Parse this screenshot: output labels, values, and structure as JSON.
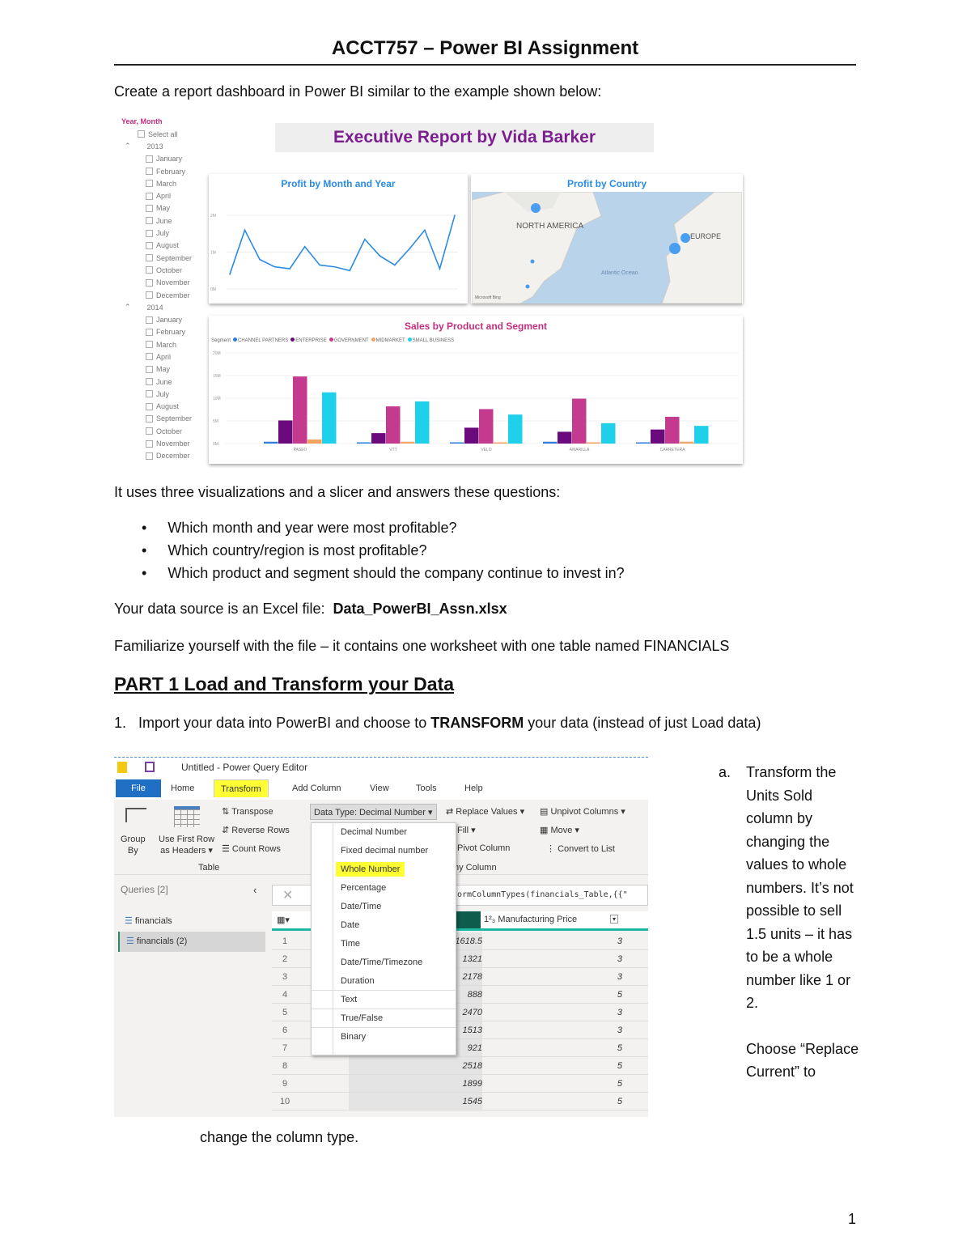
{
  "doc": {
    "title": "ACCT757 – Power BI Assignment",
    "intro": "Create a report dashboard in Power BI similar to the example shown below:",
    "uses": "It uses three visualizations and a slicer and answers these questions:",
    "questions": [
      "Which month and year were most profitable?",
      "Which country/region is most profitable?",
      "Which product and segment should the company continue to invest in?"
    ],
    "source_prefix": "Your data source is an Excel file:",
    "source_file": "Data_PowerBI_Assn.xlsx",
    "familiarize": "Familiarize yourself with the file – it contains one worksheet with one table named FINANCIALS",
    "part1": "PART 1 Load and Transform your Data",
    "step1_num": "1.",
    "step1_a": "Import  your data into PowerBI and choose to ",
    "step1_b": "TRANSFORM",
    "step1_c": " your data (instead of just Load data)",
    "note_letter": "a.",
    "note_text": "Transform the Units Sold column by changing the values to whole numbers.  It’s not possible to sell 1.5 units – it has to be a whole number like 1 or 2.",
    "note_choose": "Choose “Replace Current” to",
    "note_cont": "change the column type.",
    "page_number": "1"
  },
  "dashboard": {
    "title": "Executive Report by Vida Barker",
    "slicer": {
      "header": "Year, Month",
      "select_all": "Select all",
      "years": [
        {
          "year": "2013",
          "months": [
            "January",
            "February",
            "March",
            "April",
            "May",
            "June",
            "July",
            "August",
            "September",
            "October",
            "November",
            "December"
          ]
        },
        {
          "year": "2014",
          "months": [
            "January",
            "February",
            "March",
            "April",
            "May",
            "June",
            "July",
            "August",
            "September",
            "October",
            "November",
            "December"
          ]
        }
      ]
    },
    "colors": {
      "title": "#7b1f8f",
      "blue_title": "#2b8be3",
      "pink_title": "#c2307d"
    }
  },
  "chart_data": [
    {
      "type": "line",
      "title": "Profit by Month and Year",
      "yticks": [
        "0M",
        "1M",
        "2M"
      ],
      "ylim": [
        0,
        2.2
      ],
      "values": [
        0.4,
        1.6,
        0.8,
        0.6,
        0.55,
        1.15,
        0.65,
        0.6,
        0.5,
        1.35,
        0.9,
        0.65,
        1.1,
        1.6,
        0.55,
        2.0
      ],
      "color": "#2b8be3"
    },
    {
      "type": "map",
      "title": "Profit by Country",
      "labels": [
        "NORTH AMERICA",
        "EUROPE",
        "Atlantic Ocean"
      ],
      "credit": "Microsoft Bing"
    },
    {
      "type": "bar",
      "title": "Sales by Product and Segment",
      "legend_title": "Segment",
      "yticks": [
        "0M",
        "5M",
        "10M",
        "15M",
        "20M"
      ],
      "ylim": [
        0,
        20
      ],
      "categories": [
        "PASEO",
        "VTT",
        "VELO",
        "AMARILLA",
        "CARRETERA"
      ],
      "series": [
        {
          "name": "CHANNEL PARTNERS",
          "color": "#2b7de0",
          "values": [
            0.4,
            0.2,
            0.2,
            0.4,
            0.2
          ]
        },
        {
          "name": "ENTERPRISE",
          "color": "#6b0a7c",
          "values": [
            5.1,
            2.3,
            3.5,
            2.6,
            3.1
          ]
        },
        {
          "name": "GOVERNMENT",
          "color": "#c43a8f",
          "values": [
            14.8,
            8.2,
            7.6,
            9.9,
            5.9
          ]
        },
        {
          "name": "MIDMARKET",
          "color": "#f4a261",
          "values": [
            0.9,
            0.4,
            0.2,
            0.2,
            0.4
          ]
        },
        {
          "name": "SMALL BUSINESS",
          "color": "#1fd0ea",
          "values": [
            11.3,
            9.3,
            6.4,
            4.5,
            3.9
          ]
        }
      ]
    }
  ],
  "pq": {
    "window_title": "Untitled - Power Query Editor",
    "tabs": [
      "File",
      "Home",
      "Transform",
      "Add Column",
      "View",
      "Tools",
      "Help"
    ],
    "group_by": "Group\nBy",
    "use_first_row": "Use First Row\nas Headers ▾",
    "transpose": "Transpose",
    "reverse_rows": "Reverse Rows",
    "count_rows": "Count Rows",
    "table_group": "Table",
    "data_type": "Data Type: Decimal Number ▾",
    "replace_values": "Replace Values ▾",
    "unpivot": "Unpivot Columns ▾",
    "fill": "Fill ▾",
    "move": "Move ▾",
    "pivot": "Pivot Column",
    "convert_list": "Convert to List",
    "any_column": "ny Column",
    "menu": [
      "Decimal Number",
      "Fixed decimal number",
      "Whole Number",
      "Percentage",
      "Date/Time",
      "Date",
      "Time",
      "Date/Time/Timezone",
      "Duration",
      "Text",
      "True/False",
      "Binary"
    ],
    "queries_label": "Queries [2]",
    "queries": [
      "financials",
      "financials (2)"
    ],
    "formula": "ormColumnTypes(financials_Table,{{\"",
    "col_header": "Manufacturing Price",
    "rows": [
      {
        "n": "1",
        "units": "1618.5",
        "price": "3"
      },
      {
        "n": "2",
        "units": "1321",
        "price": "3"
      },
      {
        "n": "3",
        "units": "2178",
        "price": "3"
      },
      {
        "n": "4",
        "units": "888",
        "price": "5"
      },
      {
        "n": "5",
        "units": "2470",
        "price": "3"
      },
      {
        "n": "6",
        "units": "1513",
        "price": "3"
      },
      {
        "n": "7",
        "units": "921",
        "price": "5"
      },
      {
        "n": "8",
        "units": "2518",
        "price": "5"
      },
      {
        "n": "9",
        "units": "1899",
        "price": "5"
      },
      {
        "n": "10",
        "units": "1545",
        "price": "5"
      }
    ]
  }
}
